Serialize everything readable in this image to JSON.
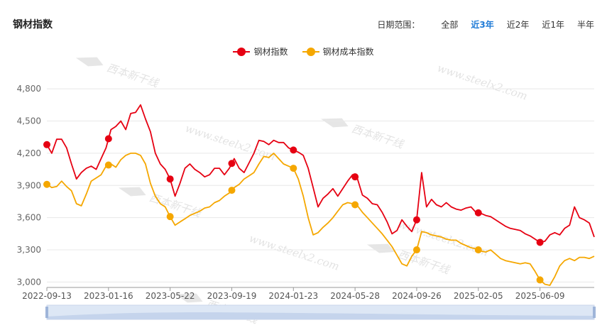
{
  "header": {
    "title": "钢材指数",
    "range_label": "日期范围：",
    "range_options": [
      "全部",
      "近3年",
      "近2年",
      "近1年",
      "半年"
    ],
    "active_range": "近3年"
  },
  "watermark": {
    "text": "www.steelx2.com",
    "logo_text": "西本新干线"
  },
  "chart_data": {
    "type": "line",
    "x_labels": [
      "2022-09-13",
      "2023-01-16",
      "2023-05-22",
      "2023-09-19",
      "2024-01-23",
      "2024-05-28",
      "2024-09-26",
      "2025-02-05",
      "2025-06-09"
    ],
    "y_ticks": [
      3000,
      3300,
      3600,
      3900,
      4200,
      4500,
      4800
    ],
    "y_tick_labels": [
      "3,000",
      "3,300",
      "3,600",
      "3,900",
      "4,200",
      "4,500",
      "4,800"
    ],
    "ylim": [
      2950,
      4900
    ],
    "x_index_range": [
      0,
      111
    ],
    "x_label_indices": [
      0,
      12.5,
      25,
      37.5,
      50,
      62.5,
      75,
      87.5,
      100
    ],
    "grid": "horizontal",
    "legend_position": "top-center",
    "series": [
      {
        "name": "钢材指数",
        "color": "#e60012",
        "marker_indices": [
          0,
          12.5,
          25,
          37.5,
          50,
          62.5,
          75,
          87.5,
          100
        ],
        "values": [
          4280,
          4200,
          4330,
          4330,
          4250,
          4100,
          3960,
          4020,
          4060,
          4080,
          4050,
          4150,
          4250,
          4420,
          4450,
          4500,
          4420,
          4570,
          4580,
          4650,
          4520,
          4400,
          4200,
          4100,
          4050,
          3960,
          3800,
          3920,
          4060,
          4100,
          4050,
          4020,
          3980,
          4000,
          4060,
          4060,
          4000,
          4060,
          4150,
          4060,
          4020,
          4110,
          4200,
          4320,
          4310,
          4280,
          4320,
          4300,
          4300,
          4250,
          4230,
          4210,
          4180,
          4060,
          3880,
          3700,
          3780,
          3820,
          3870,
          3800,
          3870,
          3940,
          4000,
          3960,
          3810,
          3780,
          3730,
          3720,
          3650,
          3560,
          3450,
          3480,
          3580,
          3520,
          3470,
          3580,
          4020,
          3700,
          3770,
          3720,
          3700,
          3740,
          3700,
          3680,
          3670,
          3690,
          3700,
          3650,
          3640,
          3620,
          3610,
          3580,
          3550,
          3520,
          3500,
          3490,
          3480,
          3450,
          3430,
          3400,
          3370,
          3380,
          3440,
          3460,
          3440,
          3500,
          3530,
          3700,
          3600,
          3580,
          3550,
          3420
        ]
      },
      {
        "name": "钢材成本指数",
        "color": "#f5a700",
        "marker_indices": [
          0,
          12.5,
          25,
          37.5,
          50,
          62.5,
          75,
          87.5,
          100
        ],
        "values": [
          3910,
          3880,
          3890,
          3940,
          3890,
          3850,
          3730,
          3710,
          3820,
          3940,
          3970,
          4000,
          4080,
          4100,
          4070,
          4140,
          4180,
          4200,
          4200,
          4180,
          4100,
          3920,
          3800,
          3730,
          3700,
          3610,
          3530,
          3560,
          3590,
          3620,
          3640,
          3660,
          3690,
          3700,
          3740,
          3760,
          3800,
          3830,
          3880,
          3910,
          3960,
          3990,
          4020,
          4100,
          4170,
          4160,
          4200,
          4150,
          4100,
          4080,
          4060,
          3960,
          3800,
          3600,
          3440,
          3460,
          3510,
          3550,
          3600,
          3660,
          3720,
          3740,
          3730,
          3710,
          3650,
          3600,
          3550,
          3500,
          3450,
          3390,
          3330,
          3250,
          3170,
          3150,
          3240,
          3300,
          3470,
          3460,
          3440,
          3430,
          3420,
          3400,
          3390,
          3390,
          3360,
          3340,
          3320,
          3310,
          3290,
          3280,
          3300,
          3260,
          3220,
          3200,
          3190,
          3180,
          3170,
          3180,
          3170,
          3100,
          3020,
          2980,
          2970,
          3050,
          3150,
          3200,
          3220,
          3200,
          3230,
          3230,
          3220,
          3240
        ]
      }
    ]
  }
}
